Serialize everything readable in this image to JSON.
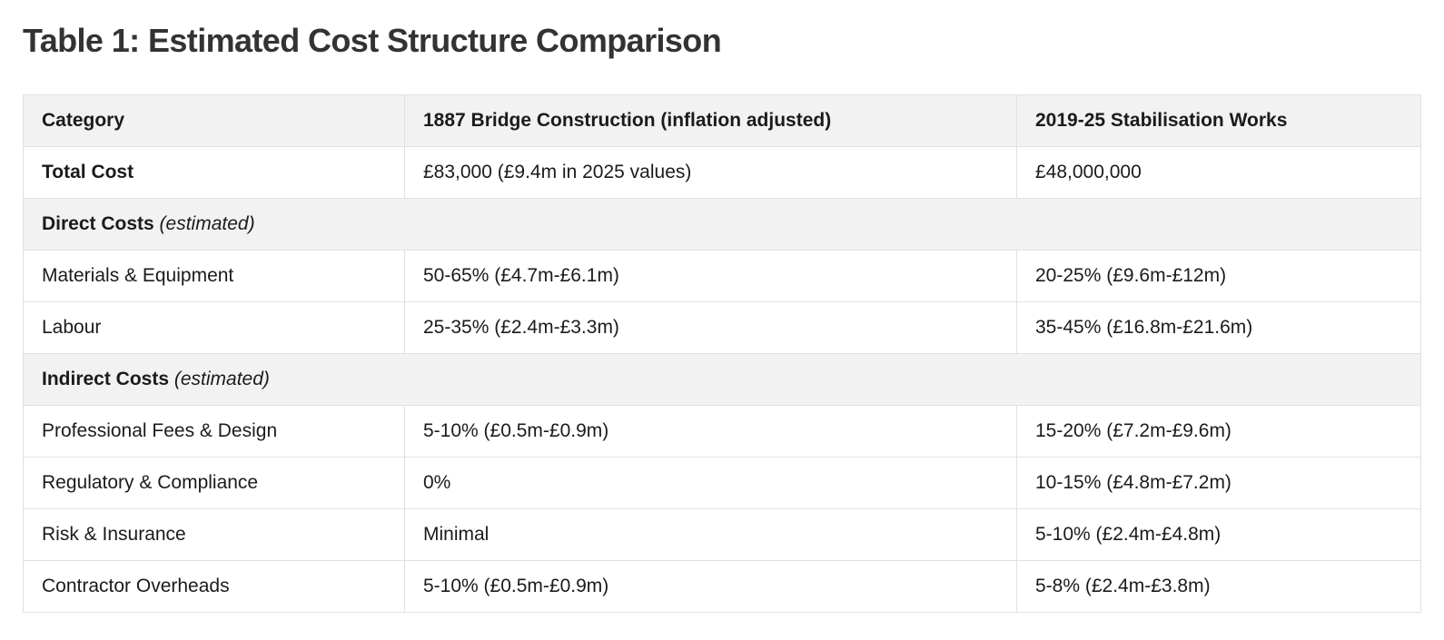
{
  "page": {
    "title": "Table 1: Estimated Cost Structure Comparison"
  },
  "colors": {
    "header_background": "#f2f2f2",
    "section_row_background": "#f2f2f2",
    "table_border": "#e1e1e1",
    "title_text": "#333333",
    "body_text": "#1b1b1b"
  },
  "table": {
    "columns": [
      {
        "label": "Category"
      },
      {
        "label": "1887 Bridge Construction (inflation adjusted)"
      },
      {
        "label": "2019-25 Stabilisation Works"
      }
    ],
    "rows": [
      {
        "type": "data",
        "category": "Total Cost",
        "col1887": "£83,000 (£9.4m in 2025 values)",
        "col2019": "£48,000,000"
      },
      {
        "type": "section",
        "label": "Direct Costs",
        "note": "(estimated)"
      },
      {
        "type": "data",
        "category": "Materials & Equipment",
        "col1887": "50-65% (£4.7m-£6.1m)",
        "col2019": "20-25% (£9.6m-£12m)"
      },
      {
        "type": "data",
        "category": "Labour",
        "col1887": "25-35% (£2.4m-£3.3m)",
        "col2019": "35-45% (£16.8m-£21.6m)"
      },
      {
        "type": "section",
        "label": "Indirect Costs",
        "note": "(estimated)"
      },
      {
        "type": "data",
        "category": "Professional Fees & Design",
        "col1887": "5-10% (£0.5m-£0.9m)",
        "col2019": "15-20% (£7.2m-£9.6m)"
      },
      {
        "type": "data",
        "category": "Regulatory & Compliance",
        "col1887": "0%",
        "col2019": "10-15% (£4.8m-£7.2m)"
      },
      {
        "type": "data",
        "category": "Risk & Insurance",
        "col1887": "Minimal",
        "col2019": "5-10% (£2.4m-£4.8m)"
      },
      {
        "type": "data",
        "category": "Contractor Overheads",
        "col1887": "5-10% (£0.5m-£0.9m)",
        "col2019": "5-8% (£2.4m-£3.8m)"
      }
    ]
  }
}
